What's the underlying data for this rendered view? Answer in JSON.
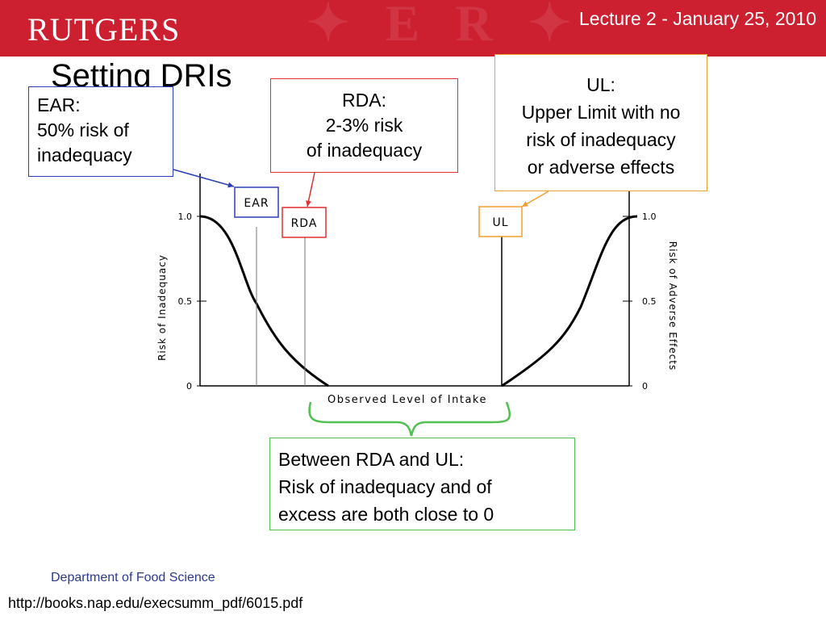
{
  "header": {
    "logo_text": "RUTGERS",
    "lecture_text": "Lecture 2 - January 25, 2010"
  },
  "slide": {
    "title": "Setting DRIs"
  },
  "callouts": {
    "ear": {
      "lines": [
        "EAR:",
        "50% risk of",
        "inadequacy"
      ],
      "color": "#2a3fb8"
    },
    "rda": {
      "lines": [
        "RDA:",
        "2-3% risk",
        "of inadequacy"
      ],
      "color": "#e03030"
    },
    "ul": {
      "lines": [
        "UL:",
        "Upper Limit with no",
        "risk of inadequacy",
        "or adverse effects"
      ],
      "color": "#f0a030"
    },
    "between": {
      "lines": [
        "Between RDA and UL:",
        "Risk of inadequacy and of",
        "excess are both close to 0"
      ],
      "color": "#50c050"
    }
  },
  "chart_data": {
    "type": "line",
    "xlabel": "Observed Level of Intake",
    "ylabel_left": "Risk of Inadequacy",
    "ylabel_right": "Risk of Adverse Effects",
    "yticks": [
      "0",
      "0.5",
      "1.0"
    ],
    "ylim": [
      0,
      1
    ],
    "markers": [
      {
        "label": "EAR",
        "risk": 0.5,
        "color": "#2a3fb8"
      },
      {
        "label": "RDA",
        "risk": 0.02,
        "color": "#e03030"
      },
      {
        "label": "UL",
        "risk": 0.0,
        "color": "#f0a030"
      }
    ],
    "series": [
      {
        "values": [
          1.0,
          0.5,
          0.02,
          0.0
        ]
      },
      {
        "values": [
          0.0,
          0.5,
          1.0
        ]
      }
    ]
  },
  "footer": {
    "department": "Department of Food Science",
    "url": "http://books.nap.edu/execsumm_pdf/6015.pdf"
  }
}
